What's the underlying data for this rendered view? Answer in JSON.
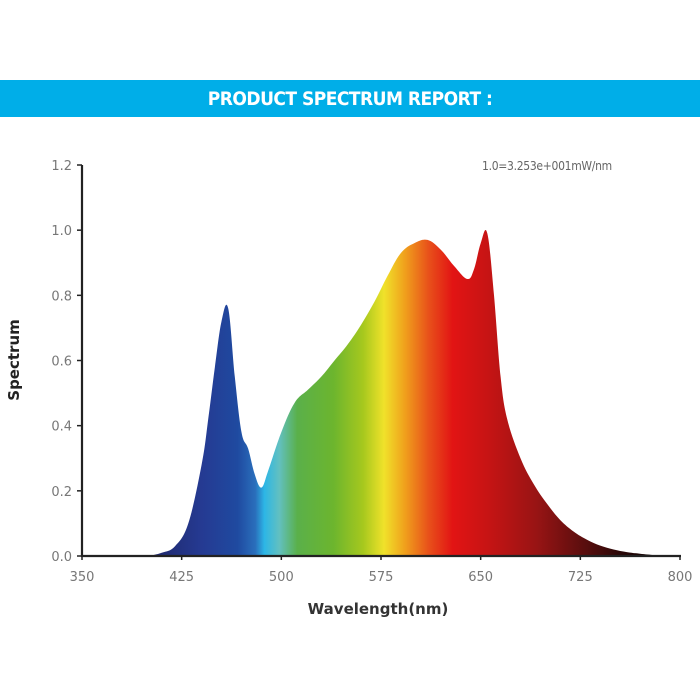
{
  "banner": {
    "title": "PRODUCT SPECTRUM REPORT :"
  },
  "chart_data": {
    "type": "area",
    "title": "PRODUCT SPECTRUM REPORT",
    "annotation": "1.0=3.253e+001mW/nm",
    "xlabel": "Wavelength(nm)",
    "ylabel": "Spectrum",
    "xlim": [
      350,
      800
    ],
    "ylim": [
      0.0,
      1.2
    ],
    "xticks": [
      "350",
      "425",
      "500",
      "575",
      "650",
      "725",
      "800"
    ],
    "yticks": [
      "0.0",
      "0.2",
      "0.4",
      "0.6",
      "0.8",
      "1.0",
      "1.2"
    ],
    "grid": false,
    "legend": null,
    "fill": "visible-spectrum gradient",
    "x": [
      400,
      410,
      420,
      430,
      440,
      445,
      450,
      455,
      460,
      465,
      470,
      475,
      480,
      485,
      490,
      500,
      510,
      520,
      530,
      540,
      550,
      560,
      570,
      580,
      590,
      600,
      610,
      620,
      630,
      640,
      645,
      650,
      655,
      660,
      665,
      670,
      680,
      690,
      700,
      710,
      720,
      730,
      740,
      750,
      760,
      770,
      780
    ],
    "values": [
      0.0,
      0.01,
      0.03,
      0.1,
      0.28,
      0.42,
      0.58,
      0.72,
      0.76,
      0.55,
      0.38,
      0.33,
      0.25,
      0.21,
      0.26,
      0.38,
      0.47,
      0.51,
      0.55,
      0.6,
      0.65,
      0.71,
      0.78,
      0.86,
      0.93,
      0.96,
      0.97,
      0.94,
      0.89,
      0.85,
      0.88,
      0.96,
      0.99,
      0.8,
      0.55,
      0.42,
      0.3,
      0.22,
      0.16,
      0.11,
      0.075,
      0.05,
      0.032,
      0.02,
      0.012,
      0.007,
      0.003
    ],
    "peaks": [
      {
        "wavelength": 460,
        "value": 0.76
      },
      {
        "wavelength": 610,
        "value": 0.97
      },
      {
        "wavelength": 655,
        "value": 0.99
      }
    ]
  },
  "colors": {
    "banner": "#00aee8",
    "axis": "#222222",
    "tick_label": "#777777"
  }
}
